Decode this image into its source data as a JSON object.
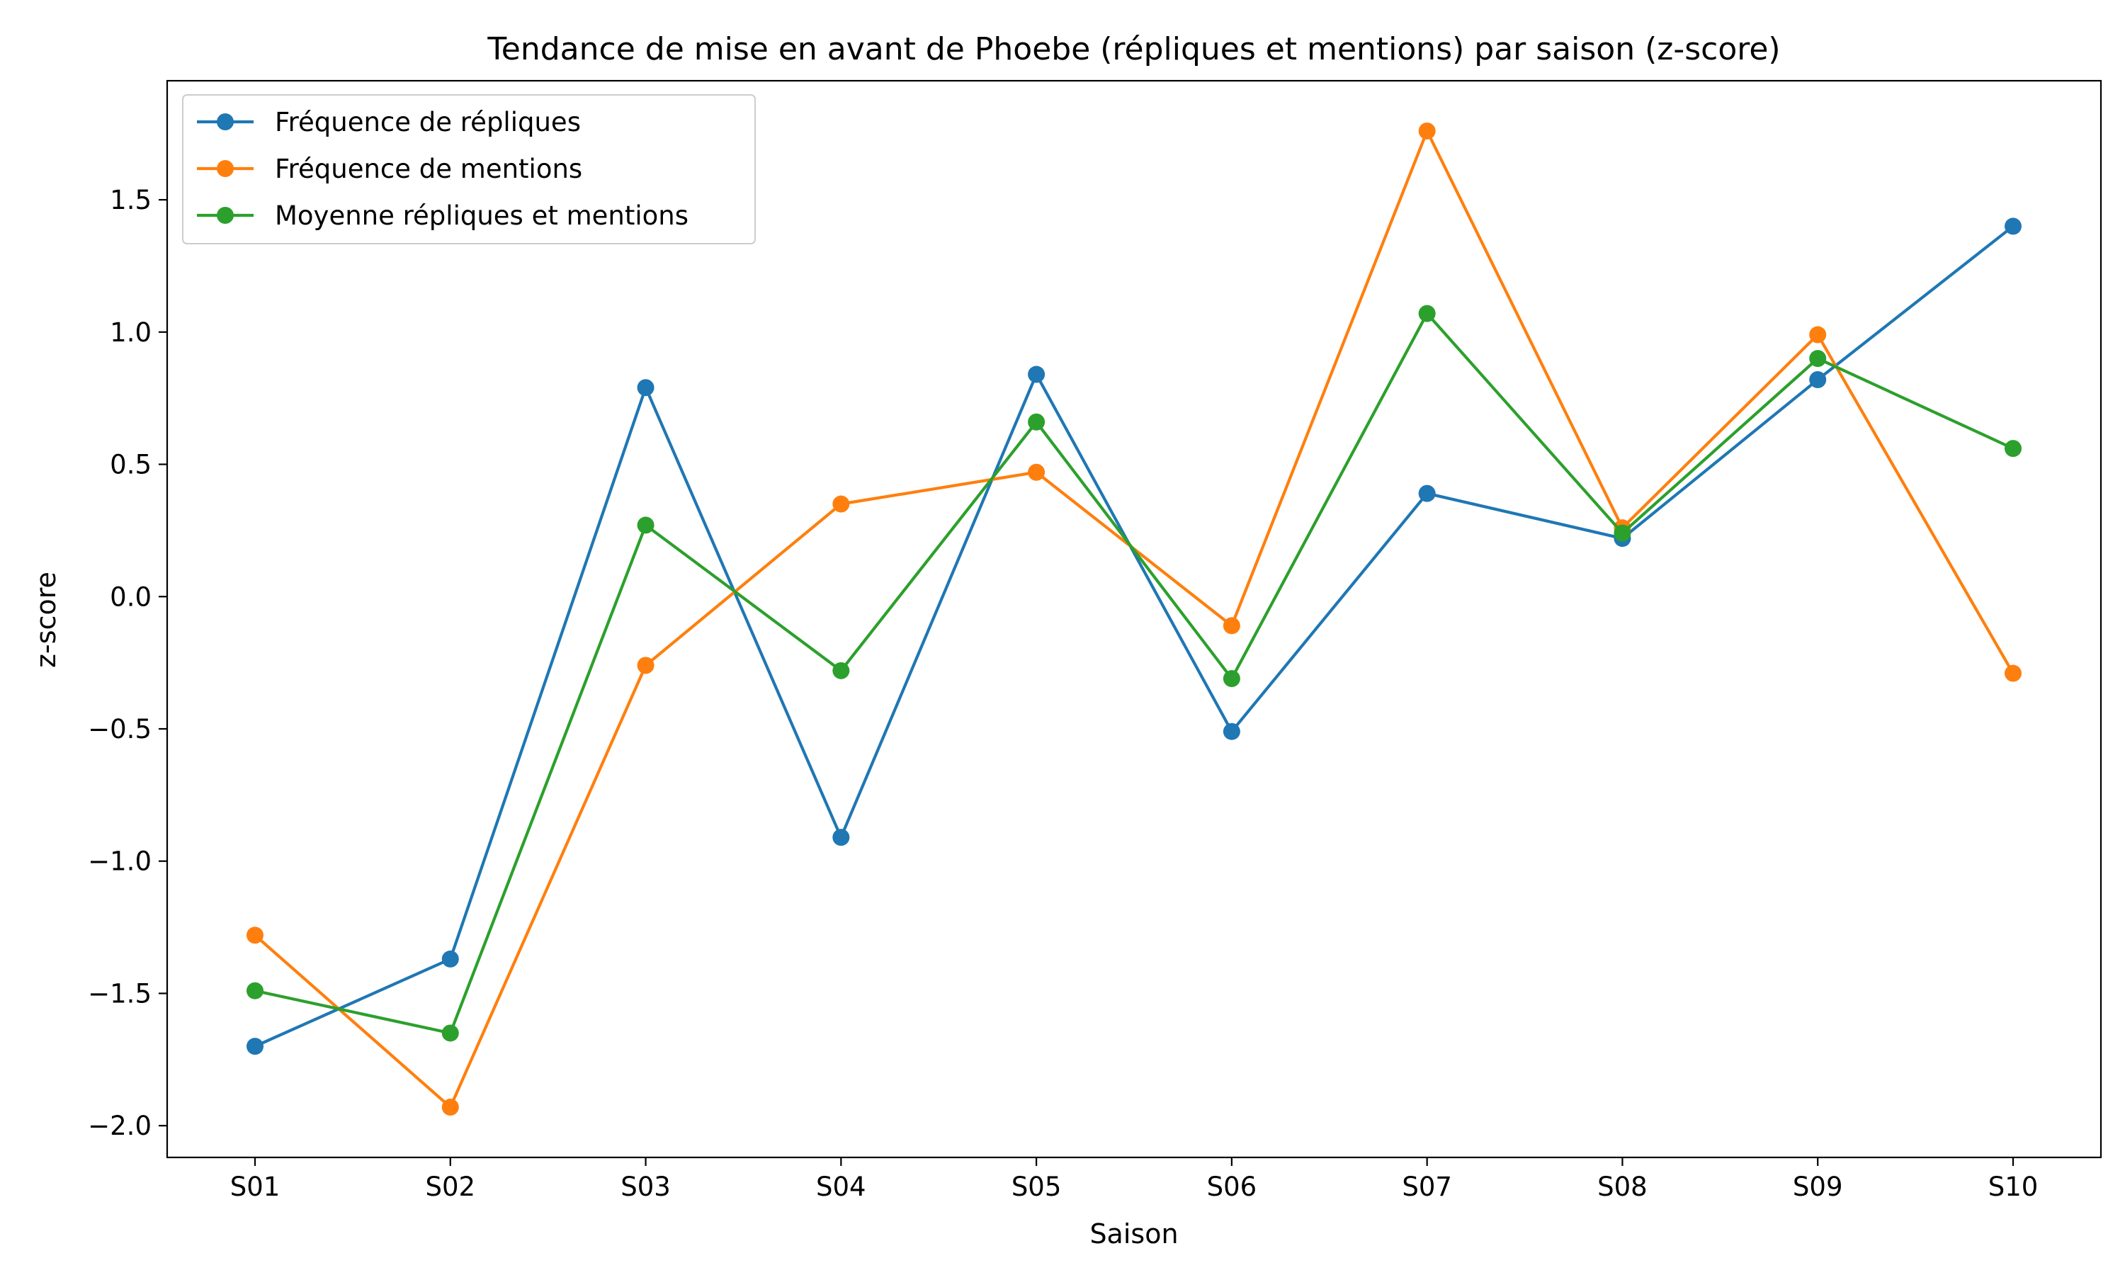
{
  "chart_data": {
    "type": "line",
    "title": "Tendance de mise en avant de Phoebe (répliques et mentions) par saison (z-score)",
    "xlabel": "Saison",
    "ylabel": "z-score",
    "categories": [
      "S01",
      "S02",
      "S03",
      "S04",
      "S05",
      "S06",
      "S07",
      "S08",
      "S09",
      "S10"
    ],
    "ylim": [
      -2.12,
      1.95
    ],
    "yticks": [
      -2.0,
      -1.5,
      -1.0,
      -0.5,
      0.0,
      0.5,
      1.0,
      1.5
    ],
    "ytick_labels": [
      "−2.0",
      "−1.5",
      "−1.0",
      "−0.5",
      "0.0",
      "0.5",
      "1.0",
      "1.5"
    ],
    "grid": false,
    "legend_position": "top-left",
    "series": [
      {
        "name": "Fréquence de répliques",
        "color": "#1f77b4",
        "values": [
          -1.7,
          -1.37,
          0.79,
          -0.91,
          0.84,
          -0.51,
          0.39,
          0.22,
          0.82,
          1.4
        ]
      },
      {
        "name": "Fréquence de mentions",
        "color": "#ff7f0e",
        "values": [
          -1.28,
          -1.93,
          -0.26,
          0.35,
          0.47,
          -0.11,
          1.76,
          0.26,
          0.99,
          -0.29
        ]
      },
      {
        "name": "Moyenne répliques et mentions",
        "color": "#2ca02c",
        "values": [
          -1.49,
          -1.65,
          0.27,
          -0.28,
          0.66,
          -0.31,
          1.07,
          0.24,
          0.9,
          0.56
        ]
      }
    ]
  }
}
